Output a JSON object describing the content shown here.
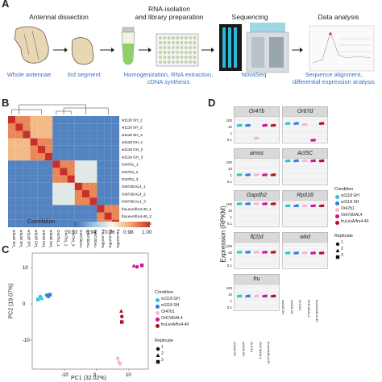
{
  "panel_a": {
    "letter": "A",
    "step_headers": {
      "antennal": "Antennal dissection",
      "rna": "RNA-isolation\nand library preparation",
      "seq": "Sequencing",
      "data": "Data analysis"
    },
    "captions": {
      "whole": "Whole antennae",
      "third": "3rd segment",
      "homog": "Homogenization, RNA extraction,\ncDNA synthesis",
      "novaseq": "NovaSeq",
      "seqalign": "Sequence alignment,\ndifferential expression analysis"
    }
  },
  "panel_b": {
    "letter": "B",
    "row_labels": [
      "w1118 SH_1",
      "w1118 SH_2",
      "w1118 SH_3",
      "w1118 GH_1",
      "w1118 GH_2",
      "w1118 GH_3",
      "Or47b1_1",
      "Or47b1_2",
      "Or47b1_3",
      "Or67dGAL4_1",
      "Or67dGAL4_2",
      "Or67dGAL4_3",
      "fruLexA/fru4-40_1",
      "fruLexA/fru4-40_2",
      "fruLexA/fru4-40_3"
    ],
    "legend_title": "Correlation",
    "legend_ticks": [
      "0.92",
      "0.94",
      "0.96",
      "0.98",
      "1.00"
    ],
    "colors": {
      "low": "#3b6fb6",
      "mid": "#f7f7e8",
      "high": "#c9302c"
    }
  },
  "panel_c": {
    "letter": "C",
    "ylabel": "PC2 (19.07%)",
    "xlabel": "PC1 (32.02%)",
    "yticks": [
      "10",
      "0",
      "-10"
    ],
    "xticks": [
      "-10",
      "0",
      "10"
    ],
    "legend_condition_title": "Condition",
    "legend_conditions": [
      "w1118 GH",
      "w1118 SH",
      "Or47b1",
      "Or67dGAL4",
      "fruLexA/fru4-40"
    ],
    "legend_replicate_title": "Replicate",
    "legend_replicates": [
      "1",
      "2",
      "3"
    ],
    "condition_colors": [
      "#27c4e3",
      "#2f7fd8",
      "#f6b8c9",
      "#d10f91",
      "#b01020"
    ]
  },
  "panel_d": {
    "letter": "D",
    "ylabel": "Expression (RPKM)",
    "facets": [
      "Or47b",
      "Or67d",
      "amos",
      "Act5C",
      "Gapdh2",
      "RpII18",
      "fl(2)d",
      "wkd",
      "fru"
    ],
    "yticks": [
      "100",
      "10",
      "1",
      "0.1"
    ],
    "xticks": [
      "w1118 GH",
      "w1118 SH",
      "Or47b1",
      "Or67dGAL4",
      "fruLexA/fru4-40"
    ],
    "legend_condition_title": "Condition",
    "legend_conditions": [
      "w1118 GH",
      "w1118 SH",
      "Or47b1",
      "Or67dGAL4",
      "fruLexA/fru4-40"
    ],
    "legend_replicate_title": "Replicate",
    "legend_replicates": [
      "1",
      "2",
      "3"
    ]
  }
}
